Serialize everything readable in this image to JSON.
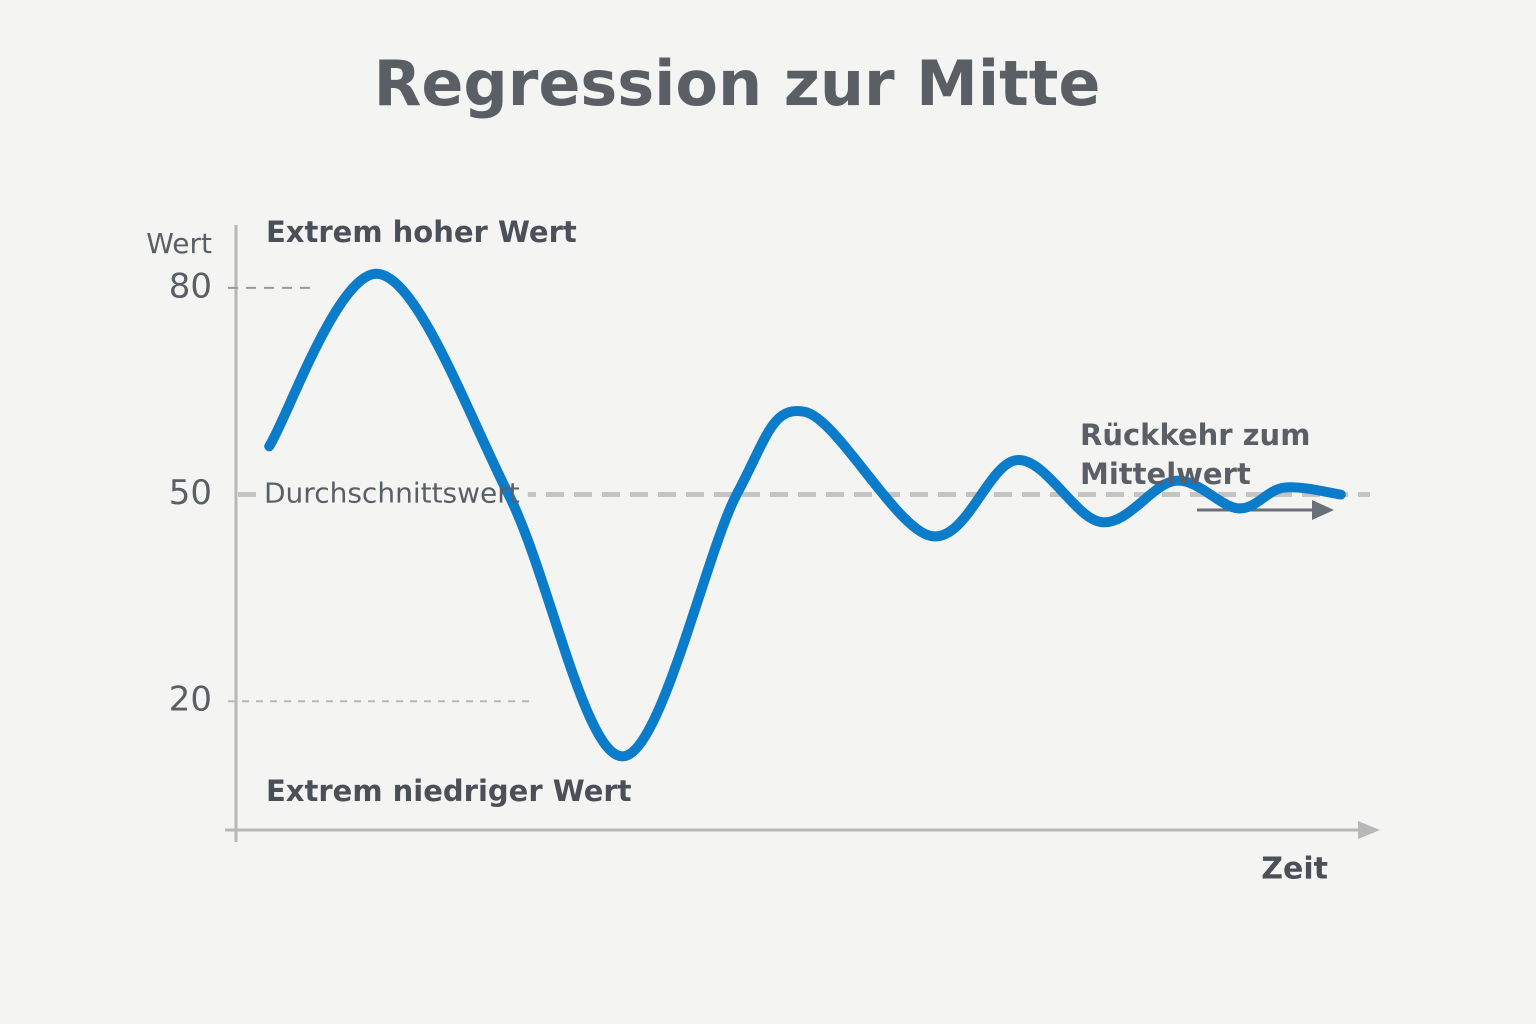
{
  "chart_data": {
    "type": "line",
    "title": "Regression zur Mitte",
    "ylabel": "Wert",
    "xlabel": "Zeit",
    "annotations": [
      "Extrem hoher Wert",
      "Durchschnittswert",
      "Extrem niedriger Wert",
      "Rückkehr zum",
      "Mittelwert"
    ],
    "x": [
      3,
      12.7,
      24,
      34,
      44,
      50,
      61,
      68.6,
      76,
      82.5,
      88,
      92,
      97
    ],
    "values": [
      57,
      82,
      50,
      12,
      50,
      62,
      44,
      55,
      46,
      52,
      48,
      51,
      50
    ],
    "color": "#0b7cc9",
    "xlim": [
      0,
      100
    ],
    "ylim": [
      0,
      90
    ],
    "yticks": [
      20,
      50,
      80
    ],
    "grid": true
  }
}
